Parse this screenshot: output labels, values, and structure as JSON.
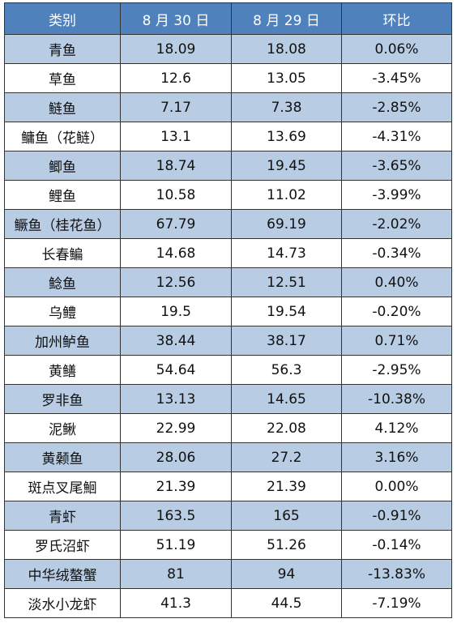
{
  "table": {
    "header": [
      "类别",
      "8 月 30 日",
      "8 月 29 日",
      "环比"
    ],
    "rows": [
      [
        "青鱼",
        "18.09",
        "18.08",
        "0.06%"
      ],
      [
        "草鱼",
        "12.6",
        "13.05",
        "-3.45%"
      ],
      [
        "鲢鱼",
        "7.17",
        "7.38",
        "-2.85%"
      ],
      [
        "鳙鱼（花鲢）",
        "13.1",
        "13.69",
        "-4.31%"
      ],
      [
        "鲫鱼",
        "18.74",
        "19.45",
        "-3.65%"
      ],
      [
        "鲤鱼",
        "10.58",
        "11.02",
        "-3.99%"
      ],
      [
        "鳜鱼（桂花鱼）",
        "67.79",
        "69.19",
        "-2.02%"
      ],
      [
        "长春鳊",
        "14.68",
        "14.73",
        "-0.34%"
      ],
      [
        "鲶鱼",
        "12.56",
        "12.51",
        "0.40%"
      ],
      [
        "乌鳢",
        "19.5",
        "19.54",
        "-0.20%"
      ],
      [
        "加州鲈鱼",
        "38.44",
        "38.17",
        "0.71%"
      ],
      [
        "黄鳝",
        "54.64",
        "56.3",
        "-2.95%"
      ],
      [
        "罗非鱼",
        "13.13",
        "14.65",
        "-10.38%"
      ],
      [
        "泥鳅",
        "22.99",
        "22.08",
        "4.12%"
      ],
      [
        "黄颡鱼",
        "28.06",
        "27.2",
        "3.16%"
      ],
      [
        "斑点叉尾鮰",
        "21.39",
        "21.39",
        "0.00%"
      ],
      [
        "青虾",
        "163.5",
        "165",
        "-0.91%"
      ],
      [
        "罗氏沼虾",
        "51.19",
        "51.26",
        "-0.14%"
      ],
      [
        "中华绒螯蟹",
        "81",
        "94",
        "-13.83%"
      ],
      [
        "淡水小龙虾",
        "41.3",
        "44.5",
        "-7.19%"
      ]
    ]
  }
}
